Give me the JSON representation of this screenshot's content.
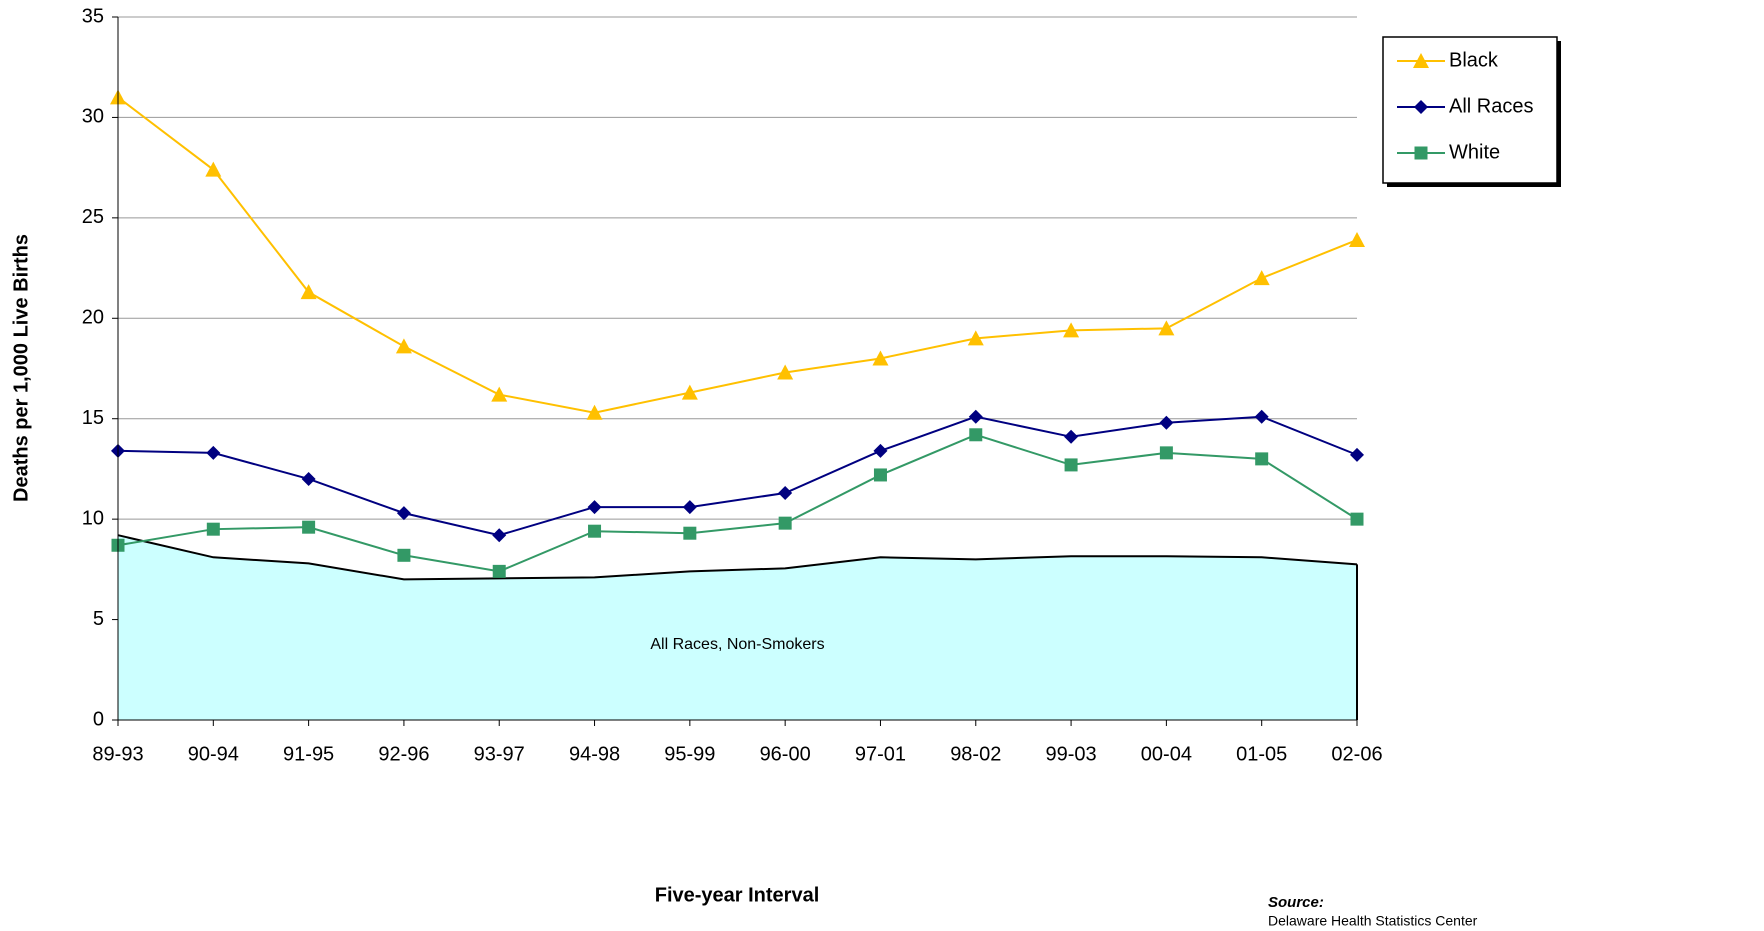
{
  "chart_data": {
    "type": "line",
    "y_label": "Deaths per 1,000 Live Births",
    "x_label": "Five-year Interval",
    "source_title": "Source:",
    "source": "Delaware Health Statistics Center",
    "categories": [
      "89-93",
      "90-94",
      "91-95",
      "92-96",
      "93-97",
      "94-98",
      "95-99",
      "96-00",
      "97-01",
      "98-02",
      "99-03",
      "00-04",
      "01-05",
      "02-06"
    ],
    "ylim": [
      0,
      35
    ],
    "yticks": [
      0,
      5,
      10,
      15,
      20,
      25,
      30,
      35
    ],
    "grid": true,
    "legend": "top-right",
    "series": [
      {
        "name": "Black",
        "color": "#ffc000",
        "marker": "triangle",
        "values": [
          31.0,
          27.4,
          21.3,
          18.6,
          16.2,
          15.3,
          16.3,
          17.3,
          18.0,
          19.0,
          19.4,
          19.5,
          22.0,
          23.9
        ]
      },
      {
        "name": "All Races",
        "color": "#000080",
        "marker": "diamond",
        "values": [
          13.4,
          13.3,
          12.0,
          10.3,
          9.2,
          10.6,
          10.6,
          11.3,
          13.4,
          15.1,
          14.1,
          14.8,
          15.1,
          13.2
        ]
      },
      {
        "name": "White",
        "color": "#339966",
        "marker": "square",
        "values": [
          8.7,
          9.5,
          9.6,
          8.2,
          7.4,
          9.4,
          9.3,
          9.8,
          12.2,
          14.2,
          12.7,
          13.3,
          13.0,
          10.0
        ]
      },
      {
        "name": "All Races, Non-Smokers",
        "type": "area",
        "color": "#000000",
        "fill": "#ccffff",
        "values": [
          9.2,
          8.1,
          7.8,
          7.0,
          7.05,
          7.1,
          7.4,
          7.55,
          8.1,
          8.0,
          8.15,
          8.15,
          8.1,
          7.75
        ]
      }
    ]
  }
}
